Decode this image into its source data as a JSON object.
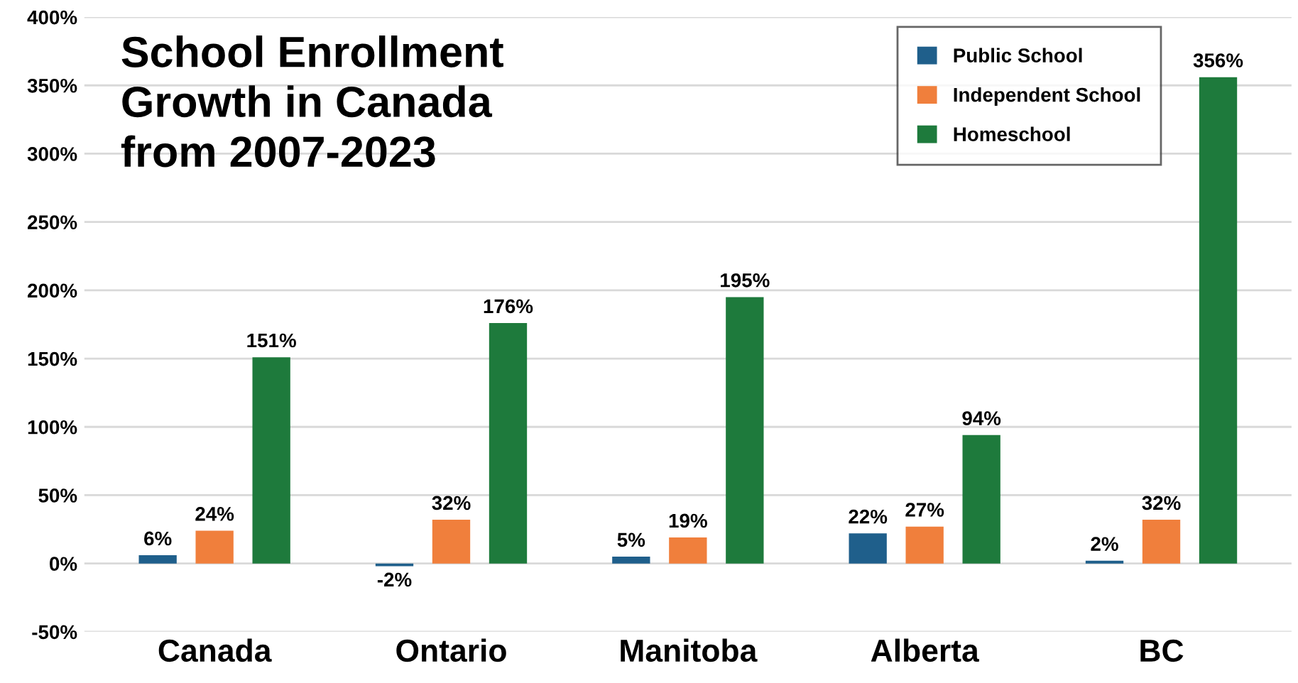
{
  "chart_data": {
    "type": "bar",
    "title": "School Enrollment\nGrowth in Canada\nfrom 2007-2023",
    "categories": [
      "Canada",
      "Ontario",
      "Manitoba",
      "Alberta",
      "BC"
    ],
    "series": [
      {
        "name": "Public School",
        "color": "#1f5f8b",
        "values": [
          6,
          -2,
          5,
          22,
          2
        ],
        "value_labels": [
          "6%",
          "-2%",
          "5%",
          "22%",
          "2%"
        ]
      },
      {
        "name": "Independent School",
        "color": "#f07f3c",
        "values": [
          24,
          32,
          19,
          27,
          32
        ],
        "value_labels": [
          "24%",
          "32%",
          "19%",
          "27%",
          "32%"
        ]
      },
      {
        "name": "Homeschool",
        "color": "#1e7a3c",
        "values": [
          151,
          176,
          195,
          94,
          356
        ],
        "value_labels": [
          "151%",
          "176%",
          "195%",
          "94%",
          "356%"
        ]
      }
    ],
    "ylim": [
      -50,
      400
    ],
    "yticks": [
      {
        "value": -50,
        "label": "-50%"
      },
      {
        "value": 0,
        "label": "0%"
      },
      {
        "value": 50,
        "label": "50%"
      },
      {
        "value": 100,
        "label": "100%"
      },
      {
        "value": 150,
        "label": "150%"
      },
      {
        "value": 200,
        "label": "200%"
      },
      {
        "value": 250,
        "label": "250%"
      },
      {
        "value": 300,
        "label": "300%"
      },
      {
        "value": 350,
        "label": "350%"
      },
      {
        "value": 400,
        "label": "400%"
      }
    ],
    "grid": "y",
    "legend": "top right"
  }
}
